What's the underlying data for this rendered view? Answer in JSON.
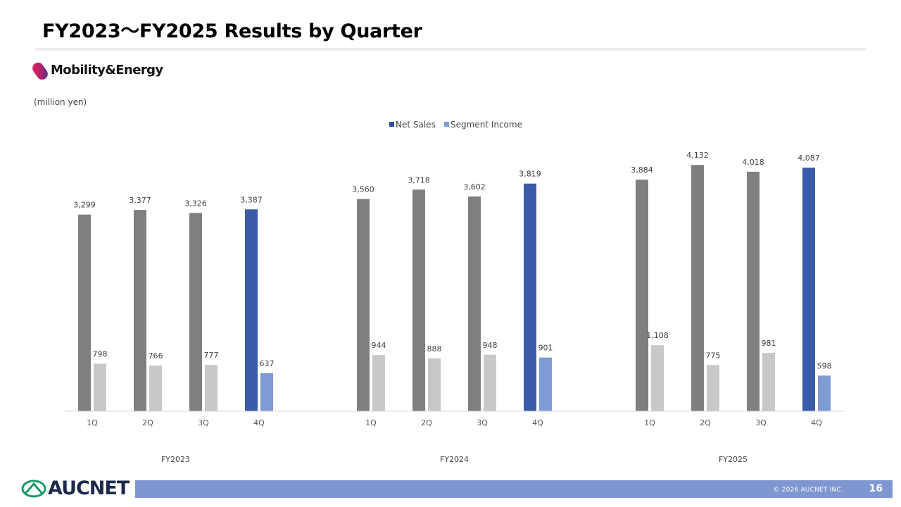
{
  "title": "FY2023～FY2025 Results by Quarter",
  "segment_logo": {
    "text": "Mobility&Energy",
    "icon": "capsule-logo-icon"
  },
  "unit_note": "(million yen)",
  "footer": {
    "company_logo": "AUCNET",
    "copyright": "© 2026 AUCNET INC.",
    "page_number": "16"
  },
  "colors": {
    "net_sales": "#7f7f7f",
    "segment_income": "#c8c8c8",
    "net_sales_highlight": "#3a5ca8",
    "segment_income_highlight": "#7f9bd3",
    "legend_net_sales": "#2e4f9e",
    "legend_segment_income": "#7f9bd3",
    "footer_bar": "#7f97d0"
  },
  "chart_data": {
    "type": "bar",
    "title": "",
    "xlabel": "",
    "ylabel": "",
    "legend_position": "top-center",
    "grid": false,
    "ylim": [
      0,
      4300
    ],
    "groups": [
      {
        "name": "FY2023",
        "categories": [
          "1Q",
          "2Q",
          "3Q",
          "4Q"
        ]
      },
      {
        "name": "FY2024",
        "categories": [
          "1Q",
          "2Q",
          "3Q",
          "4Q"
        ]
      },
      {
        "name": "FY2025",
        "categories": [
          "1Q",
          "2Q",
          "3Q",
          "4Q"
        ]
      }
    ],
    "highlighted_quarter": "4Q",
    "series": [
      {
        "name": "Net Sales",
        "values": [
          3299,
          3377,
          3326,
          3387,
          3560,
          3718,
          3602,
          3819,
          3884,
          4132,
          4018,
          4087
        ],
        "labels": [
          "3,299",
          "3,377",
          "3,326",
          "3,387",
          "3,560",
          "3,718",
          "3,602",
          "3,819",
          "3,884",
          "4,132",
          "4,018",
          "4,087"
        ]
      },
      {
        "name": "Segment Income",
        "values": [
          798,
          766,
          777,
          637,
          944,
          888,
          948,
          901,
          1108,
          775,
          981,
          598
        ],
        "labels": [
          "798",
          "766",
          "777",
          "637",
          "944",
          "888",
          "948",
          "901",
          "1,108",
          "775",
          "981",
          "598"
        ]
      }
    ]
  }
}
